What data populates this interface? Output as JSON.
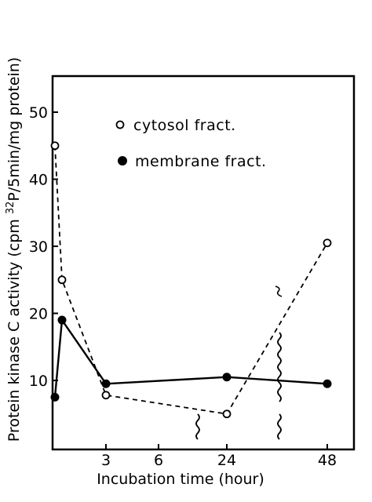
{
  "chart_data": {
    "type": "line",
    "title": "",
    "xlabel": "Incubation time (hour)",
    "ylabel_parts": [
      "Protein kinase C activity (cpm ",
      "32",
      "P/5min/mg protein)"
    ],
    "ylabel": "Protein kinase C activity (cpm 32P/5min/mg protein)",
    "x_ticks": [
      "3",
      "6",
      "24",
      "48"
    ],
    "y_ticks": [
      "10",
      "20",
      "30",
      "40",
      "50"
    ],
    "ylim": [
      5,
      55
    ],
    "x_axis_breaks": true,
    "legend_placement": "top-right",
    "series": [
      {
        "name": "cytosol fract.",
        "marker": "open-circle",
        "line_style": "dashed",
        "color": "#000000",
        "x": [
          "0",
          "0.5",
          "3",
          "24",
          "48"
        ],
        "values": [
          45,
          25,
          7.8,
          5,
          30.5
        ]
      },
      {
        "name": "membrane fract.",
        "marker": "filled-circle",
        "line_style": "solid",
        "color": "#000000",
        "x": [
          "0",
          "0.5",
          "3",
          "24",
          "48"
        ],
        "values": [
          7.5,
          19,
          9.5,
          10.5,
          9.5
        ]
      }
    ]
  }
}
